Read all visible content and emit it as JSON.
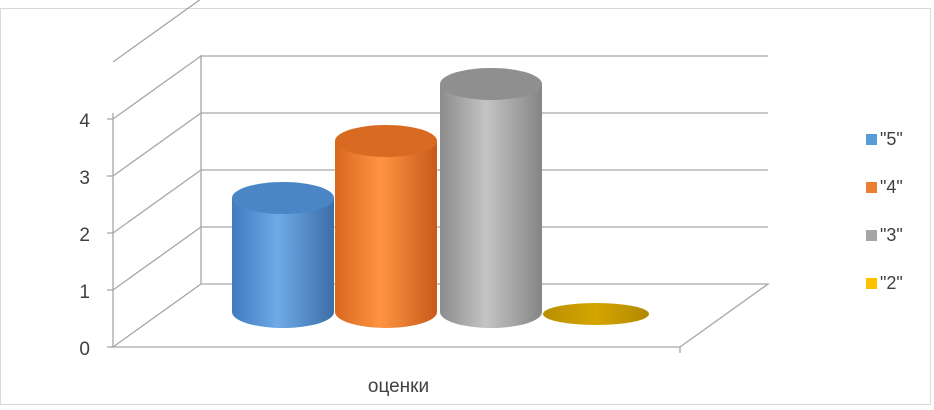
{
  "chart_data": {
    "type": "bar",
    "style": "3d-cylinder",
    "categories": [
      "оценки"
    ],
    "series": [
      {
        "name": "\"5\"",
        "values": [
          2
        ],
        "color": "#5B9BD5"
      },
      {
        "name": "\"4\"",
        "values": [
          3
        ],
        "color": "#ED7D31"
      },
      {
        "name": "\"3\"",
        "values": [
          4
        ],
        "color": "#A5A5A5"
      },
      {
        "name": "\"2\"",
        "values": [
          0
        ],
        "color": "#FFC000"
      }
    ],
    "y_ticks": [
      "0",
      "1",
      "2",
      "3",
      "4"
    ],
    "ylim": [
      0,
      4
    ],
    "grid": true,
    "legend": "right",
    "title": "",
    "xlabel": "",
    "ylabel": ""
  }
}
